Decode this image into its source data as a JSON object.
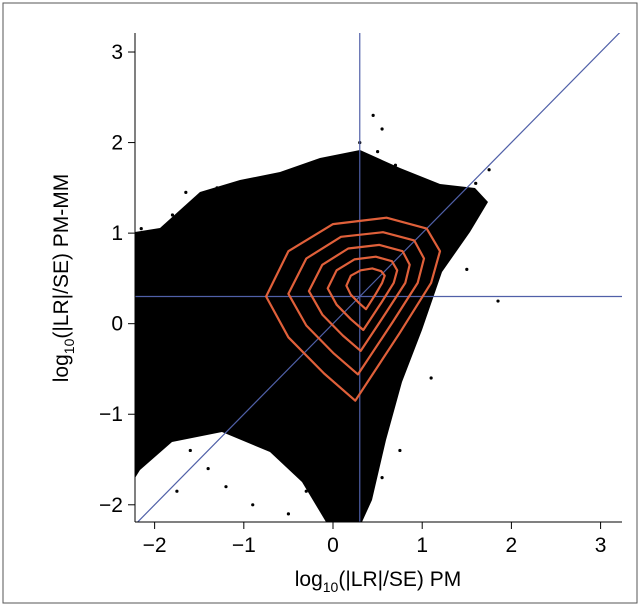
{
  "chart_data": {
    "type": "scatter",
    "x_label": {
      "prefix": "log",
      "subscript": "10",
      "suffix": "(|LR|/SE) PM"
    },
    "y_label": {
      "prefix": "log",
      "subscript": "10",
      "suffix": "(|LR|/SE) PM-MM"
    },
    "xlim": [
      -2.22,
      3.24
    ],
    "ylim": [
      -2.19,
      3.21
    ],
    "xticks": [
      {
        "value": -2,
        "label": "−2"
      },
      {
        "value": -1,
        "label": "−1"
      },
      0,
      1,
      2,
      3
    ],
    "yticks": [
      {
        "value": -2,
        "label": "−2"
      },
      {
        "value": -1,
        "label": "−1"
      },
      0,
      1,
      2,
      3
    ],
    "point_color": "#000000",
    "points": {
      "x": [
        0.45,
        0.55,
        0.5,
        0.7,
        0.3,
        0.05,
        -0.1,
        -0.6,
        -1.0,
        -1.3,
        -1.65,
        -2.15,
        -1.8,
        1.75,
        1.6,
        1.85,
        1.5,
        -2.1,
        -2.0,
        -1.8,
        -1.6,
        -1.4,
        -1.75,
        -1.2,
        -0.9,
        -0.5,
        0.1,
        0.2,
        0.55,
        0.75,
        1.1,
        -0.3,
        1.3,
        -1.5,
        -1.9
      ],
      "y": [
        2.3,
        2.15,
        1.9,
        1.75,
        2.0,
        1.7,
        1.5,
        1.45,
        1.55,
        1.5,
        1.45,
        1.05,
        1.2,
        1.7,
        1.55,
        0.25,
        0.6,
        -0.6,
        -0.9,
        -1.2,
        -1.4,
        -1.6,
        -1.85,
        -1.8,
        -2.0,
        -2.1,
        -2.1,
        -1.95,
        -1.7,
        -1.4,
        -0.6,
        -1.85,
        1.3,
        0.9,
        0.6
      ]
    },
    "contour_color": "#e0603a",
    "contours": [
      {
        "x": [
          -0.75,
          -0.5,
          0,
          0.6,
          1.05,
          1.2,
          1.1,
          0.75,
          0.25,
          -0.1,
          -0.5
        ],
        "y": [
          0.3,
          0.8,
          1.1,
          1.17,
          1.05,
          0.8,
          0.45,
          -0.1,
          -0.85,
          -0.55,
          -0.15
        ]
      },
      {
        "x": [
          -0.5,
          -0.3,
          0.09,
          0.56,
          0.91,
          1.02,
          0.95,
          0.67,
          0.28,
          0.01,
          -0.3
        ],
        "y": [
          0.33,
          0.72,
          0.96,
          1.01,
          0.92,
          0.72,
          0.45,
          0.02,
          -0.56,
          -0.33,
          -0.02
        ]
      },
      {
        "x": [
          -0.27,
          -0.12,
          0.17,
          0.52,
          0.78,
          0.86,
          0.81,
          0.6,
          0.31,
          0.11,
          -0.12
        ],
        "y": [
          0.36,
          0.65,
          0.83,
          0.87,
          0.8,
          0.65,
          0.45,
          0.13,
          -0.3,
          -0.13,
          0.1
        ]
      },
      {
        "x": [
          -0.06,
          0.04,
          0.24,
          0.48,
          0.66,
          0.72,
          0.68,
          0.54,
          0.34,
          0.2,
          0.04
        ],
        "y": [
          0.39,
          0.59,
          0.71,
          0.74,
          0.69,
          0.59,
          0.45,
          0.23,
          -0.07,
          0.05,
          0.21
        ]
      },
      {
        "x": [
          0.15,
          0.2,
          0.31,
          0.44,
          0.54,
          0.58,
          0.55,
          0.48,
          0.37,
          0.29,
          0.2
        ],
        "y": [
          0.42,
          0.53,
          0.59,
          0.61,
          0.58,
          0.53,
          0.45,
          0.33,
          0.16,
          0.23,
          0.32
        ]
      }
    ],
    "reference_color": "#5060a8",
    "reference_lines": {
      "vertical_x": 0.3,
      "horizontal_y": 0.3,
      "diagonal_slope": 1
    }
  }
}
